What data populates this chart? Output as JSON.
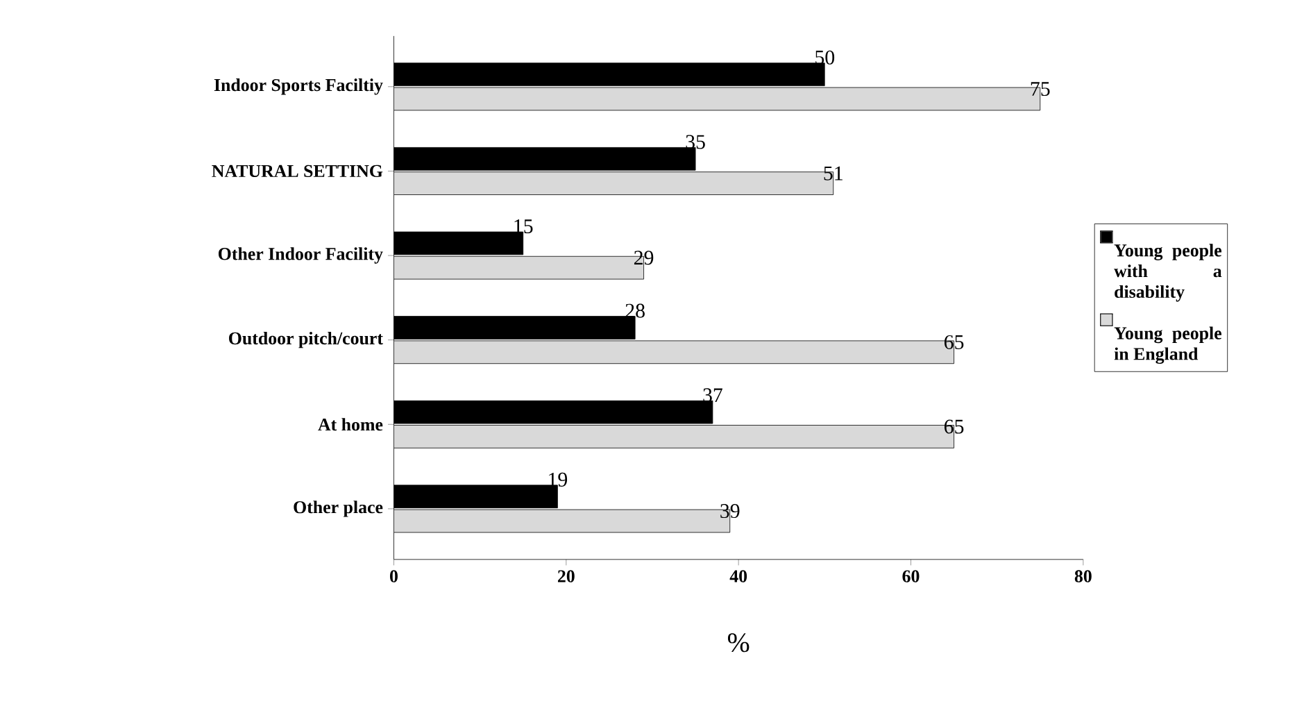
{
  "chart_data": {
    "type": "bar",
    "orientation": "horizontal",
    "xlabel": "%",
    "categories": [
      "Indoor Sports Faciltiy",
      "NATURAL SETTING",
      "Other Indoor Facility",
      "Outdoor pitch/court",
      "At home",
      "Other place"
    ],
    "series": [
      {
        "name": "Young people with a disability",
        "color": "#000000",
        "values": [
          50,
          35,
          15,
          28,
          37,
          19
        ]
      },
      {
        "name": "Young people in England",
        "color": "#d9d9d9",
        "values": [
          75,
          51,
          29,
          65,
          65,
          39
        ]
      }
    ],
    "xlim": [
      0,
      80
    ],
    "xticks": [
      0,
      20,
      40,
      60,
      80
    ],
    "data_labels": true,
    "legend": "right",
    "grid": false
  }
}
